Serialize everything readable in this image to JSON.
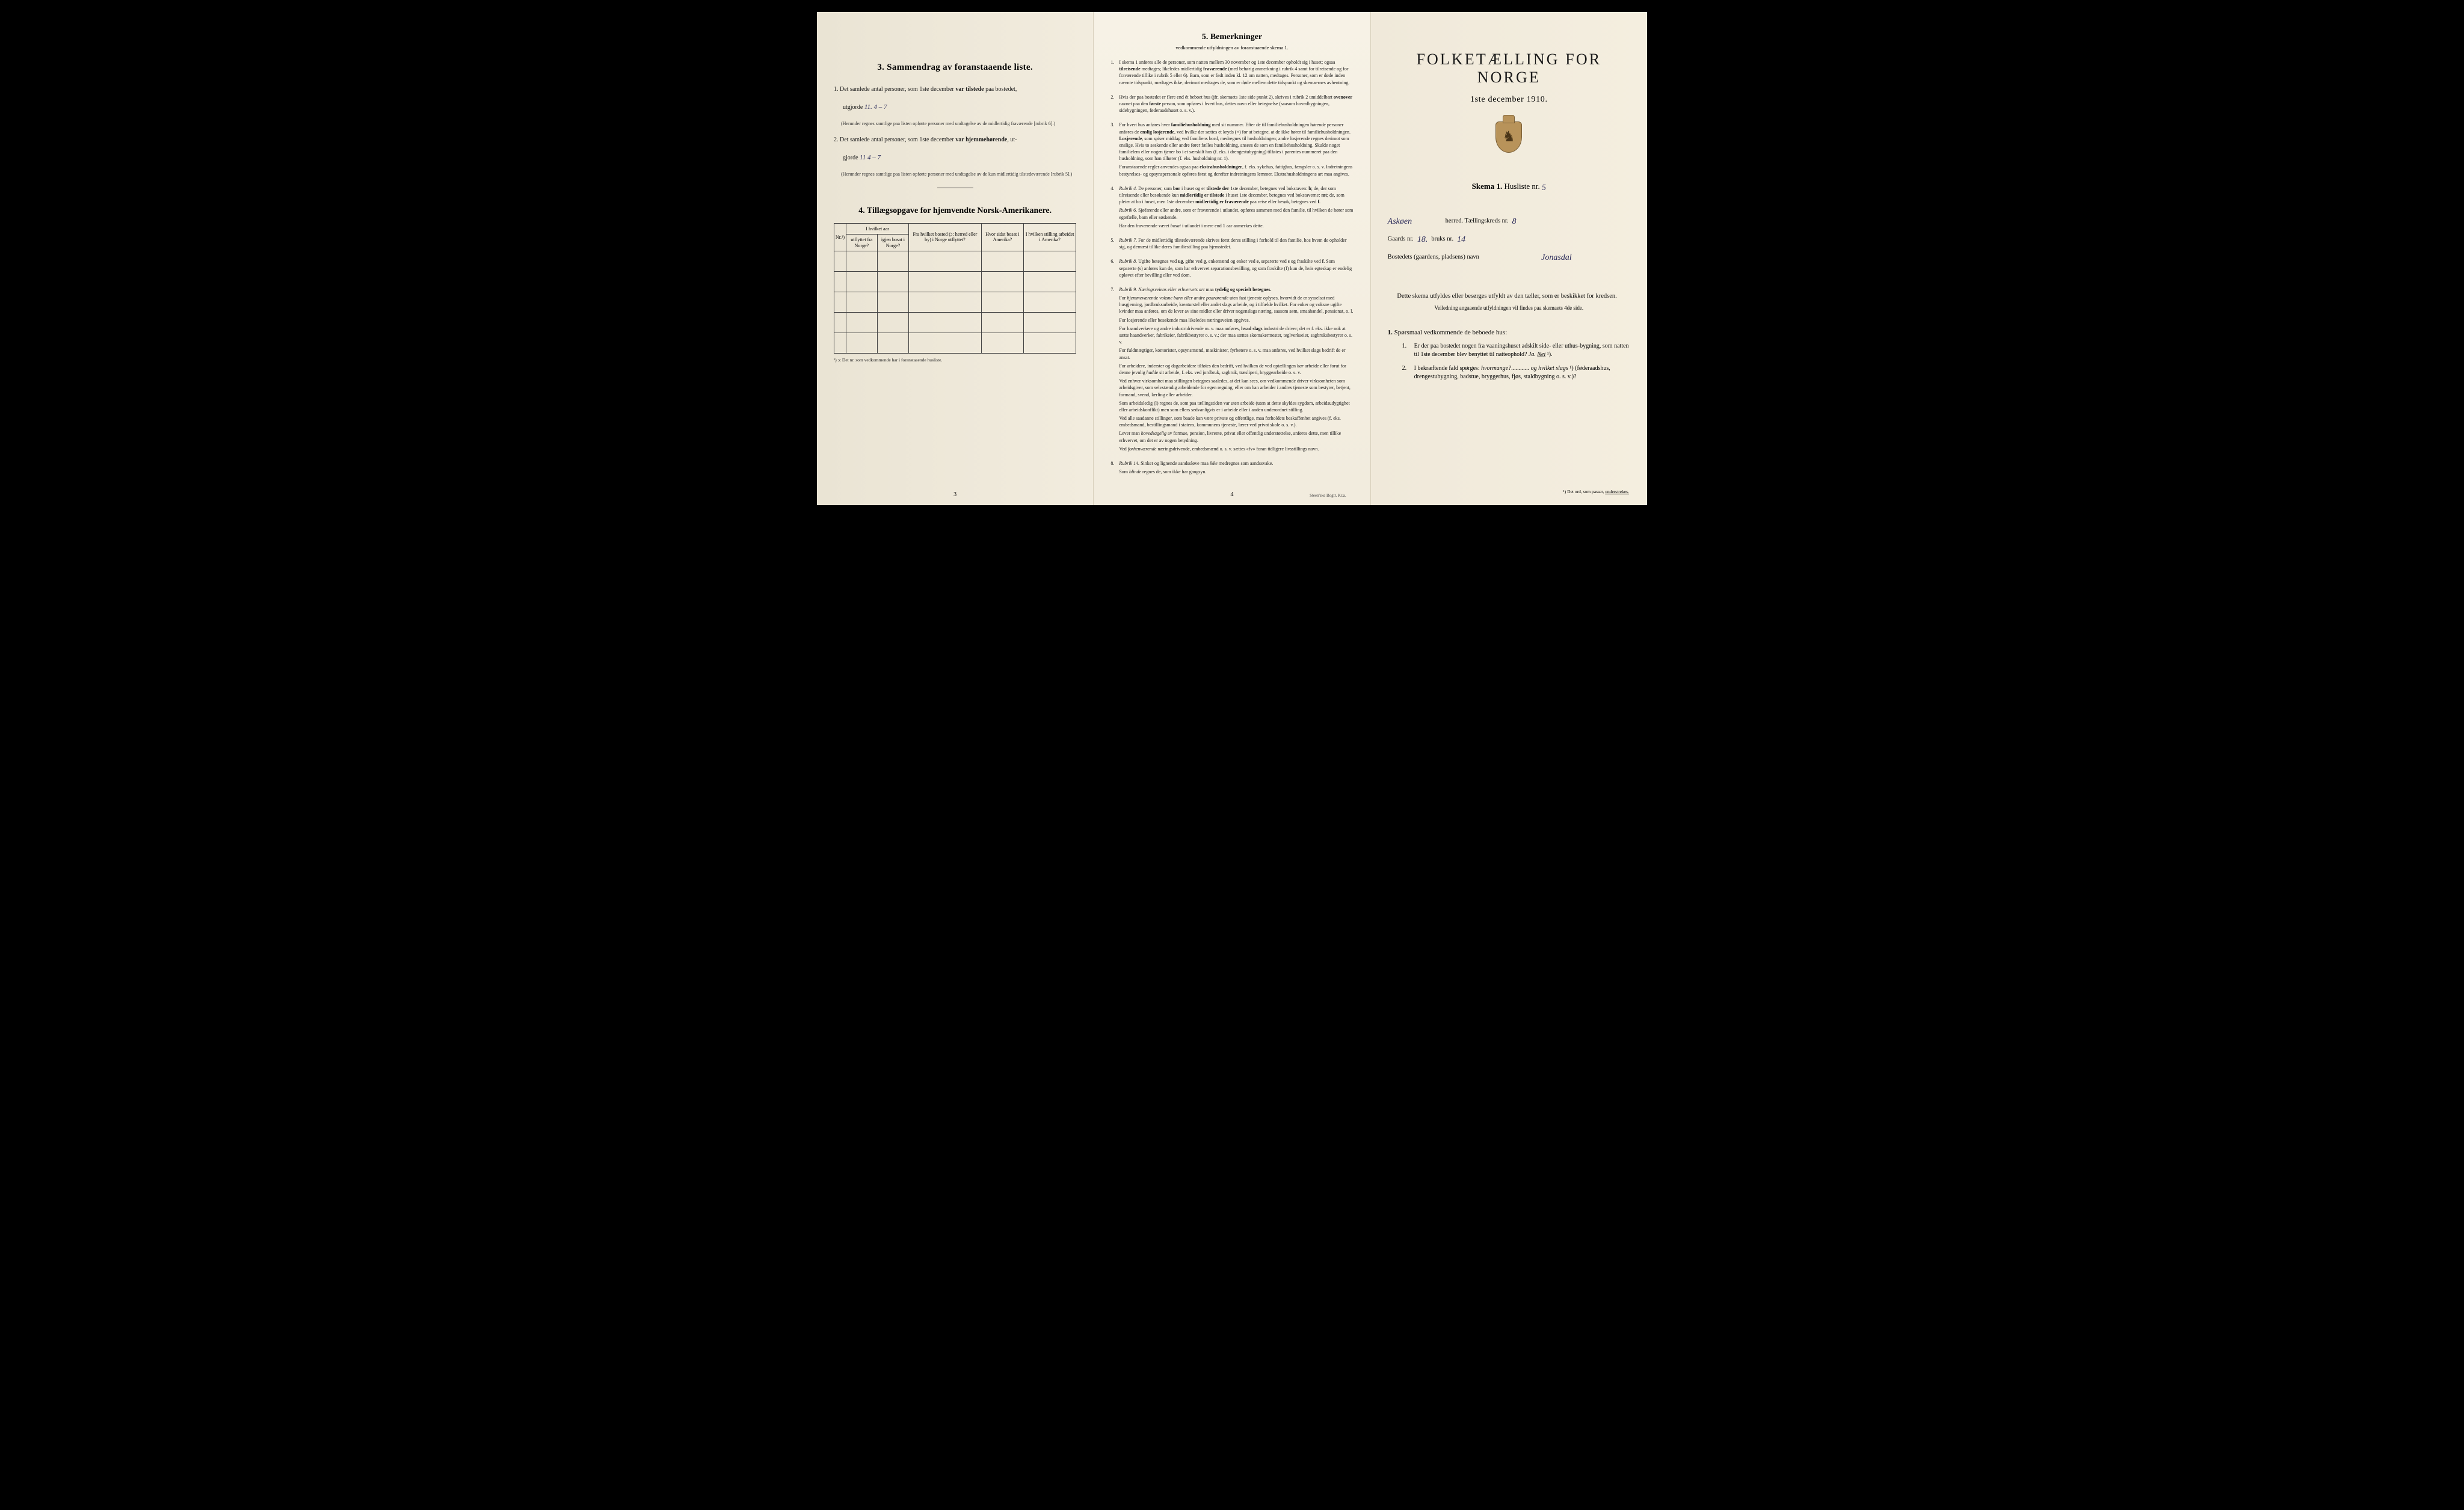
{
  "page1": {
    "section3_title": "3.   Sammendrag av foranstaaende liste.",
    "item1_pre": "1. Det samlede antal personer, som 1ste december ",
    "item1_bold": "var tilstede",
    "item1_post": " paa bostedet,",
    "item1_line2": "utgjorde",
    "item1_hand": "11.    4 – 7",
    "item1_note": "(Herunder regnes samtlige paa listen opførte personer med undtagelse av de midlertidig fraværende [rubrik 6].)",
    "item2_pre": "2. Det samlede antal personer, som 1ste december ",
    "item2_bold": "var hjemmehørende",
    "item2_post": ", ut-",
    "item2_line2": "gjorde",
    "item2_hand": "11      4 – 7",
    "item2_note": "(Herunder regnes samtlige paa listen opførte personer med undtagelse av de kun midlertidig tilstedeværende [rubrik 5].)",
    "section4_title": "4.   Tillægsopgave for hjemvendte Norsk-Amerikanere.",
    "tbl_h_nr": "Nr.¹)",
    "tbl_h_year": "I hvilket aar",
    "tbl_h_year_a": "utflyttet fra Norge?",
    "tbl_h_year_b": "igjen bosat i Norge?",
    "tbl_h_from": "Fra hvilket bosted (ɔ: herred eller by) i Norge utflyttet?",
    "tbl_h_where": "Hvor sidst bosat i Amerika?",
    "tbl_h_job": "I hvilken stilling arbeidet i Amerika?",
    "tbl_footnote": "¹) ɔ: Det nr. som vedkommende har i foranstaaende husliste.",
    "page_num": "3"
  },
  "page2": {
    "heading": "5.   Bemerkninger",
    "sub": "vedkommende utfyldningen av foranstaaende skema 1.",
    "items": [
      {
        "n": "1.",
        "body": [
          "I skema 1 anføres alle de personer, som natten mellem 30 november og 1ste december opholdt sig i huset; ogsaa <b>tilreisende</b> medtages; likeledes midlertidig <b>fraværende</b> (med behørig anmerkning i rubrik 4 samt for tilreisende og for fraværende tillike i rubrik 5 eller 6). Barn, som er født inden kl. 12 om natten, medtages. Personer, som er døde inden nævnte tidspunkt, medtages ikke; derimot medtages de, som er døde mellem dette tidspunkt og skemaernes avhentning."
        ]
      },
      {
        "n": "2.",
        "body": [
          "Hvis der paa bostedet er flere end ét beboet hus (jfr. skemaets 1ste side punkt 2), skrives i rubrik 2 umiddelbart <b>ovenover</b> navnet paa den <b>første</b> person, som opføres i hvert hus, dettes navn eller betegnelse (saasom hovedbygningen, sidebygningen, føderaadshuset o. s. v.)."
        ]
      },
      {
        "n": "3.",
        "body": [
          "For hvert hus anføres hver <b>familiehusholdning</b> med sit nummer. Efter de til familiehusholdningen hørende personer anføres de <b>enslig losjerende</b>, ved hvilke der sættes et kryds (×) for at betegne, at de ikke hører til familiehusholdningen. <b>Losjerende</b>, som spiser middag ved familiens bord, medregnes til husholdningen; andre losjerende regnes derimot som enslige. Hvis to søskende eller andre fører fælles husholdning, ansees de som en familiehusholdning. Skulde noget familielem eller nogen tjener bo i et særskilt hus (f. eks. i drengestubygning) tilføies i parentes nummeret paa den husholdning, som han tilhører (f. eks. husholdning nr. 1).",
          "Foranstaaende regler anvendes ogsaa paa <b>ekstrahusholdninger</b>, f. eks. sykehus, fattighus, fængsler o. s. v. Indretningens bestyrelses- og opsynspersonale opføres først og derefter indretningens lemmer. Ekstrahusholdningens art maa angives."
        ]
      },
      {
        "n": "4.",
        "body": [
          "<i>Rubrik 4.</i> De personer, som <b>bor</b> i huset og er <b>tilstede der</b> 1ste december, betegnes ved bokstaven: <b>b</b>; de, der som tilreisende eller besøkende kun <b>midlertidig er tilstede</b> i huset 1ste december, betegnes ved bokstaverne: <b>mt</b>; de, som pleier at bo i huset, men 1ste december <b>midlertidig er fraværende</b> paa reise eller besøk, betegnes ved <b>f</b>.",
          "<i>Rubrik 6.</i> Sjøfarende eller andre, som er fraværende i utlandet, opføres sammen med den familie, til hvilken de hører som egtefælle, barn eller søskende.",
          "Har den fraværende været <i>bosat</i> i utlandet i mere end 1 aar anmerkes dette."
        ]
      },
      {
        "n": "5.",
        "body": [
          "<i>Rubrik 7.</i> For de midlertidig tilstedeværende skrives først deres stilling i forhold til den familie, hos hvem de opholder sig, og dernæst tillike deres familiestilling paa hjemstedet."
        ]
      },
      {
        "n": "6.",
        "body": [
          "<i>Rubrik 8.</i> Ugifte betegnes ved <b>ug</b>, gifte ved <b>g</b>, enkemænd og enker ved <b>e</b>, separerte ved <b>s</b> og fraskilte ved <b>f</b>. Som separerte (s) anføres kun de, som har erhvervet separationsbevilling, og som fraskilte (f) kun de, hvis egteskap er endelig opløvet efter bevilling eller ved dom."
        ]
      },
      {
        "n": "7.",
        "body": [
          "<i>Rubrik 9. Næringsveiens eller erhvervets art</i> maa <b>tydelig og specielt betegnes.</b>",
          "For <i>hjemmeværende voksne barn eller andre paarørende</i> uten fast tjeneste oplyses, hvorvidt de er sysselsat med husgjerning, jordbruksarbeide, kreaturstel eller andet slags arbeide, og i tilfælde hvilket. For enker og voksne ugifte kvinder maa anføres, om de lever av sine midler eller driver nogenslags næring, saasom søm, smaahandel, pensionat, o. l.",
          "For losjerende eller besøkende maa likeledes næringsveien opgives.",
          "For haandverkere og andre industridrivende m. v. maa anføres, <b>hvad slags</b> industri de driver; det er f. eks. ikke nok at sætte haandverker, fabrikeier, fabrikbestyrer o. s. v.; der maa sættes skomakermester, teglverkseier, sagbruksbestyrer o. s. v.",
          "For fuldmægtiger, kontorister, opsynsmænd, maskinister, fyrbøtere o. s. v. maa anføres, ved hvilket slags bedrift de er ansat.",
          "For arbeidere, inderster og dagarbeidere tilføies den bedrift, ved hvilken de ved optællingen <i>har</i> arbeide eller forut for denne jevnlig <i>hadde</i> sit arbeide, f. eks. ved jordbruk, sagbruk, træsliperi, bryggearbeide o. s. v.",
          "Ved enhver virksomhet maa stillingen betegnes saaledes, at det kan sees, om vedkommende driver virksomheten som arbeidsgiver, som selvstændig arbeidende for egen regning, eller om han arbeider i andres tjeneste som bestyrer, betjent, formand, svend, lærling eller arbeider.",
          "Som arbeidsledig (l) regnes de, som paa tællingstiden var uten arbeide (uten at dette skyldes sygdom, arbeidsudygtighet eller arbeidskonflikt) men som ellers sedvanligvis er i arbeide eller i anden underordnet stilling.",
          "Ved alle saadanne stillinger, som baade kan være private og offentlige, maa forholdets beskaffenhet angives (f. eks. embedsmand, bestillingsmand i statens, kommunens tjeneste, lærer ved privat skole o. s. v.).",
          "Lever man <i>hovedsagelig</i> av formue, pension, livrente, privat eller offentlig understøttelse, anføres dette, men tillike erhvervet, om det er av nogen betydning.",
          "Ved <i>forhenværende</i> næringsdrivende, embedsmænd o. s. v. sættes «fv» foran tidligere livsstillings navn."
        ]
      },
      {
        "n": "8.",
        "body": [
          "<i>Rubrik 14.</i> Sinker og lignende aandssløve maa <i>ikke</i> medregnes som aandssvake.",
          "Som <i>blinde</i> regnes de, som ikke har gangsyn."
        ]
      }
    ],
    "page_num": "4",
    "printer": "Steen'ske Bogtr. Kr.a."
  },
  "page3": {
    "title": "FOLKETÆLLING FOR NORGE",
    "date": "1ste december 1910.",
    "skema_bold": "Skema 1.",
    "skema_label": "  Husliste nr.",
    "skema_hand": "5",
    "herred_hand": "Askøen",
    "herred_label": "herred.   Tællingskreds nr.",
    "kreds_hand": "8",
    "gaards_label": "Gaards nr.",
    "gaards_hand": "18.",
    "bruks_label": "bruks nr.",
    "bruks_hand": "14",
    "bosted_label": "Bostedets (gaardens, pladsens) navn",
    "bosted_hand": "Jonasdal",
    "instruct": "Dette skema utfyldes eller besørges utfyldt av den tæller, som er beskikket for kredsen.",
    "instruct_sub": "Veiledning angaaende utfyldningen vil findes paa skemaets 4de side.",
    "q_heading_num": "1.",
    "q_heading": " Spørsmaal vedkommende de beboede hus:",
    "q1_num": "1.",
    "q1": "Er der paa bostedet nogen fra vaaningshuset adskilt side- eller uthus-bygning, som natten til 1ste december blev benyttet til natteophold?   <i>Ja.   <u>Nei</u></i> ¹).",
    "q2_num": "2.",
    "q2": "I bekræftende fald spørges: <i>hvormange?</i>............ <i>og hvilket slags</i> ¹) (føderaadshus, drengestubygning, badstue, bryggerhus, fjøs, staldbygning o. s. v.)?",
    "footnote": "¹) Det ord, som passer, <u>understrekes.</u>"
  }
}
